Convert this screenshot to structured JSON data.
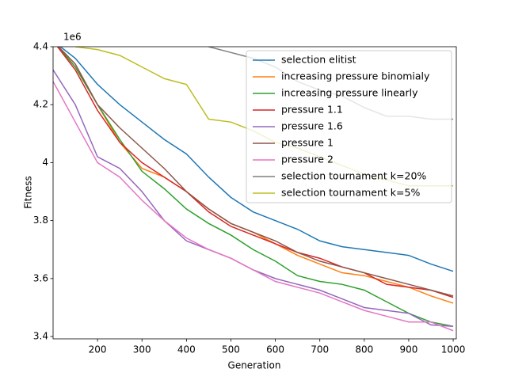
{
  "chart_data": {
    "type": "line",
    "xlabel": "Generation",
    "ylabel": "Fitness",
    "y_offset_label": "1e6",
    "x": [
      100,
      150,
      200,
      250,
      300,
      350,
      400,
      450,
      500,
      550,
      600,
      650,
      700,
      750,
      800,
      850,
      900,
      950,
      1000
    ],
    "xlim": [
      100,
      1007
    ],
    "xticks": [
      200,
      300,
      400,
      500,
      600,
      700,
      800,
      900,
      1000
    ],
    "ylim": [
      3.392,
      4.4
    ],
    "yticks": [
      3.4,
      3.6,
      3.8,
      4.0,
      4.2,
      4.4
    ],
    "legend": "upper right",
    "series": [
      {
        "name": "selection elitist",
        "color": "#1f77b4",
        "values": [
          4.42,
          4.36,
          4.27,
          4.2,
          4.14,
          4.08,
          4.03,
          3.95,
          3.88,
          3.83,
          3.8,
          3.77,
          3.73,
          3.71,
          3.7,
          3.69,
          3.68,
          3.65,
          3.625
        ]
      },
      {
        "name": "increasing pressure binomialy",
        "color": "#ff7f0e",
        "values": [
          4.42,
          4.33,
          4.2,
          4.07,
          3.98,
          3.95,
          3.9,
          3.84,
          3.79,
          3.76,
          3.72,
          3.68,
          3.65,
          3.62,
          3.61,
          3.59,
          3.57,
          3.54,
          3.515
        ]
      },
      {
        "name": "increasing pressure linearly",
        "color": "#2ca02c",
        "values": [
          4.42,
          4.33,
          4.2,
          4.08,
          3.97,
          3.91,
          3.84,
          3.79,
          3.75,
          3.7,
          3.66,
          3.61,
          3.59,
          3.58,
          3.56,
          3.52,
          3.48,
          3.45,
          3.435
        ]
      },
      {
        "name": "pressure 1.1",
        "color": "#d62728",
        "values": [
          4.42,
          4.32,
          4.18,
          4.07,
          4.0,
          3.95,
          3.9,
          3.83,
          3.78,
          3.75,
          3.72,
          3.69,
          3.67,
          3.64,
          3.62,
          3.58,
          3.57,
          3.56,
          3.535
        ]
      },
      {
        "name": "pressure 1.6",
        "color": "#9467bd",
        "values": [
          4.32,
          4.2,
          4.02,
          3.98,
          3.9,
          3.8,
          3.73,
          3.7,
          3.67,
          3.63,
          3.6,
          3.58,
          3.56,
          3.53,
          3.5,
          3.49,
          3.48,
          3.44,
          3.435
        ]
      },
      {
        "name": "pressure 1",
        "color": "#8c564b",
        "values": [
          4.42,
          4.34,
          4.2,
          4.12,
          4.05,
          3.98,
          3.9,
          3.84,
          3.79,
          3.76,
          3.73,
          3.69,
          3.66,
          3.64,
          3.62,
          3.6,
          3.58,
          3.56,
          3.54
        ]
      },
      {
        "name": "pressure 2",
        "color": "#e377c2",
        "values": [
          4.28,
          4.14,
          4.0,
          3.95,
          3.87,
          3.8,
          3.74,
          3.7,
          3.67,
          3.63,
          3.59,
          3.57,
          3.55,
          3.52,
          3.49,
          3.47,
          3.45,
          3.45,
          3.42
        ]
      },
      {
        "name": "selection tournament k=20%",
        "color": "#7f7f7f",
        "values": [
          null,
          null,
          null,
          null,
          null,
          null,
          null,
          4.4,
          4.38,
          4.36,
          4.33,
          4.28,
          4.25,
          4.23,
          4.19,
          4.16,
          4.16,
          4.15,
          4.15
        ]
      },
      {
        "name": "selection tournament k=5%",
        "color": "#bcbd22",
        "values": [
          null,
          4.4,
          4.39,
          4.37,
          4.33,
          4.29,
          4.27,
          4.15,
          4.14,
          4.11,
          4.07,
          4.05,
          4.02,
          3.99,
          3.96,
          3.94,
          3.92,
          3.92,
          3.92
        ]
      }
    ]
  }
}
